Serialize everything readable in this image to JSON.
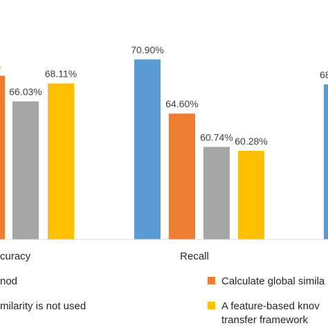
{
  "chart_data": {
    "type": "bar",
    "categories": [
      "curacy",
      "Recall"
    ],
    "value_labels": [
      [
        "%",
        "",
        "66.03%",
        "68.11%"
      ],
      [
        "70.90%",
        "64.60%",
        "60.74%",
        "60.28%"
      ]
    ],
    "series": [
      {
        "color": "#5B9BD5",
        "values": [
          null,
          70.9
        ]
      },
      {
        "color": "#ED7D31",
        "values": [
          null,
          64.6
        ]
      },
      {
        "color": "#A5A5A5",
        "values": [
          66.03,
          60.74
        ]
      },
      {
        "color": "#FFC000",
        "values": [
          68.11,
          60.28
        ]
      }
    ],
    "partial_values": [
      {
        "series_index": 1,
        "category_index": 0,
        "value": 69.0
      },
      {
        "series_index": 0,
        "category_index": 2,
        "value": 68.0
      }
    ],
    "clipped_label": "68",
    "ylim": [
      50,
      72
    ],
    "gridlines": false,
    "legend_position": "bottom",
    "legend": [
      {
        "color": "#ED7D31",
        "lines": [
          "nod"
        ]
      },
      {
        "color": "#ED7D31",
        "lines": [
          "Calculate global simila"
        ]
      },
      {
        "color": "#A5A5A5",
        "lines": [
          "milarity is not used"
        ]
      },
      {
        "color": "#FFC000",
        "lines": [
          "A feature-based knov",
          "transfer framework"
        ]
      }
    ]
  }
}
